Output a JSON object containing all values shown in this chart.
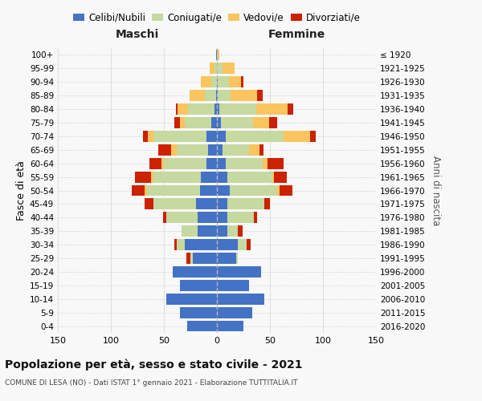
{
  "age_groups": [
    "0-4",
    "5-9",
    "10-14",
    "15-19",
    "20-24",
    "25-29",
    "30-34",
    "35-39",
    "40-44",
    "45-49",
    "50-54",
    "55-59",
    "60-64",
    "65-69",
    "70-74",
    "75-79",
    "80-84",
    "85-89",
    "90-94",
    "95-99",
    "100+"
  ],
  "birth_years": [
    "2016-2020",
    "2011-2015",
    "2006-2010",
    "2001-2005",
    "1996-2000",
    "1991-1995",
    "1986-1990",
    "1981-1985",
    "1976-1980",
    "1971-1975",
    "1966-1970",
    "1961-1965",
    "1956-1960",
    "1951-1955",
    "1946-1950",
    "1941-1945",
    "1936-1940",
    "1931-1935",
    "1926-1930",
    "1921-1925",
    "≤ 1920"
  ],
  "colors": {
    "celibe": "#4472c4",
    "coniugato": "#c6d9a0",
    "vedovo": "#fac45e",
    "divorziato": "#cc2200"
  },
  "maschi": {
    "celibe": [
      28,
      35,
      48,
      35,
      42,
      23,
      30,
      18,
      18,
      20,
      16,
      15,
      10,
      8,
      10,
      5,
      2,
      1,
      0,
      0,
      1
    ],
    "coniugato": [
      0,
      0,
      0,
      0,
      0,
      2,
      8,
      15,
      30,
      40,
      50,
      45,
      40,
      30,
      50,
      25,
      25,
      10,
      5,
      2,
      0
    ],
    "vedovo": [
      0,
      0,
      0,
      0,
      0,
      0,
      0,
      0,
      0,
      0,
      2,
      2,
      2,
      5,
      5,
      5,
      10,
      15,
      10,
      5,
      0
    ],
    "divorziato": [
      0,
      0,
      0,
      0,
      0,
      4,
      2,
      0,
      3,
      8,
      12,
      15,
      12,
      12,
      5,
      5,
      2,
      0,
      0,
      0,
      0
    ]
  },
  "femmine": {
    "nubile": [
      25,
      33,
      45,
      30,
      42,
      18,
      20,
      10,
      10,
      10,
      12,
      10,
      8,
      5,
      8,
      4,
      2,
      1,
      1,
      0,
      0
    ],
    "coniugata": [
      0,
      0,
      0,
      0,
      0,
      2,
      8,
      10,
      25,
      35,
      45,
      42,
      35,
      25,
      55,
      30,
      35,
      12,
      10,
      5,
      0
    ],
    "vedova": [
      0,
      0,
      0,
      0,
      0,
      0,
      0,
      0,
      0,
      0,
      2,
      2,
      5,
      10,
      25,
      15,
      30,
      25,
      12,
      12,
      2
    ],
    "divorziata": [
      0,
      0,
      0,
      0,
      0,
      0,
      4,
      4,
      3,
      5,
      12,
      12,
      15,
      4,
      5,
      8,
      5,
      5,
      2,
      0,
      0
    ]
  },
  "xlim": 150,
  "title": "Popolazione per età, sesso e stato civile - 2021",
  "subtitle": "COMUNE DI LESA (NO) - Dati ISTAT 1° gennaio 2021 - Elaborazione TUTTITALIA.IT",
  "ylabel": "Fasce di età",
  "ylabel_right": "Anni di nascita",
  "xlabel_left": "Maschi",
  "xlabel_right": "Femmine",
  "background_color": "#f8f8f8",
  "grid_color": "#cccccc"
}
